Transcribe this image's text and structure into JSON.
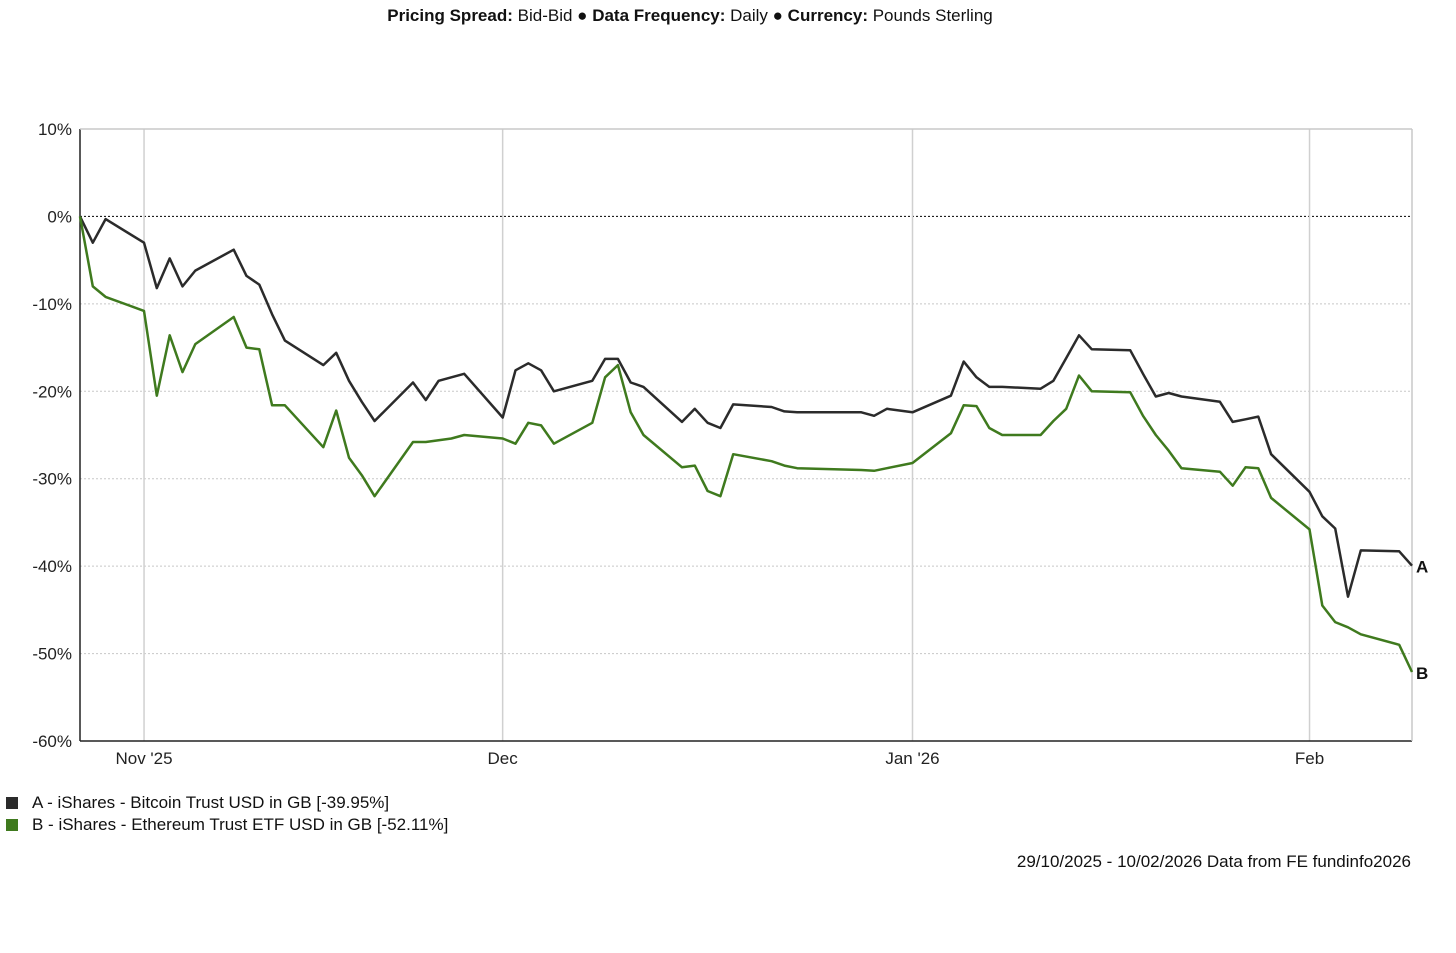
{
  "header": {
    "pricing_spread_label": "Pricing Spread:",
    "pricing_spread_value": "Bid-Bid",
    "separator": "●",
    "data_frequency_label": "Data Frequency:",
    "data_frequency_value": "Daily",
    "currency_label": "Currency:",
    "currency_value": "Pounds Sterling"
  },
  "legend": {
    "items": [
      {
        "label": "A - iShares - Bitcoin Trust USD in GB [-39.95%]",
        "color": "#2b2b2b"
      },
      {
        "label": "B - iShares - Ethereum Trust ETF USD in GB [-52.11%]",
        "color": "#3f7a1e"
      }
    ]
  },
  "footer": {
    "text": "29/10/2025 - 10/02/2026 Data from FE fundinfo2026"
  },
  "chart_data": {
    "type": "line",
    "x_range": [
      "2025-10-29",
      "2026-02-10"
    ],
    "ylim": [
      -60,
      10
    ],
    "yticks": [
      10,
      0,
      -10,
      -20,
      -30,
      -40,
      -50,
      -60
    ],
    "ytick_labels": [
      "10%",
      "0%",
      "-10%",
      "-20%",
      "-30%",
      "-40%",
      "-50%",
      "-60%"
    ],
    "xticks": [
      {
        "date": "2025-11-03",
        "label": "Nov '25"
      },
      {
        "date": "2025-12-01",
        "label": "Dec"
      },
      {
        "date": "2026-01-02",
        "label": "Jan '26"
      },
      {
        "date": "2026-02-02",
        "label": "Feb"
      }
    ],
    "grid": true,
    "zero_line": true,
    "series": [
      {
        "name": "A - iShares - Bitcoin Trust USD in GB [-39.95%]",
        "end_label": "A",
        "color": "#2b2b2b",
        "points": [
          [
            "2025-10-29",
            0.0
          ],
          [
            "2025-10-30",
            -3.0
          ],
          [
            "2025-10-31",
            -0.3
          ],
          [
            "2025-11-03",
            -3.0
          ],
          [
            "2025-11-04",
            -8.2
          ],
          [
            "2025-11-05",
            -4.8
          ],
          [
            "2025-11-06",
            -8.0
          ],
          [
            "2025-11-07",
            -6.2
          ],
          [
            "2025-11-10",
            -3.8
          ],
          [
            "2025-11-11",
            -6.8
          ],
          [
            "2025-11-12",
            -7.8
          ],
          [
            "2025-11-13",
            -11.2
          ],
          [
            "2025-11-14",
            -14.2
          ],
          [
            "2025-11-17",
            -17.0
          ],
          [
            "2025-11-18",
            -15.6
          ],
          [
            "2025-11-19",
            -18.8
          ],
          [
            "2025-11-20",
            -21.2
          ],
          [
            "2025-11-21",
            -23.4
          ],
          [
            "2025-11-24",
            -19.0
          ],
          [
            "2025-11-25",
            -21.0
          ],
          [
            "2025-11-26",
            -18.8
          ],
          [
            "2025-11-27",
            -18.4
          ],
          [
            "2025-11-28",
            -18.0
          ],
          [
            "2025-12-01",
            -23.0
          ],
          [
            "2025-12-02",
            -17.6
          ],
          [
            "2025-12-03",
            -16.8
          ],
          [
            "2025-12-04",
            -17.6
          ],
          [
            "2025-12-05",
            -20.0
          ],
          [
            "2025-12-08",
            -18.8
          ],
          [
            "2025-12-09",
            -16.3
          ],
          [
            "2025-12-10",
            -16.3
          ],
          [
            "2025-12-11",
            -19.0
          ],
          [
            "2025-12-12",
            -19.5
          ],
          [
            "2025-12-15",
            -23.5
          ],
          [
            "2025-12-16",
            -22.0
          ],
          [
            "2025-12-17",
            -23.6
          ],
          [
            "2025-12-18",
            -24.2
          ],
          [
            "2025-12-19",
            -21.5
          ],
          [
            "2025-12-22",
            -21.8
          ],
          [
            "2025-12-23",
            -22.3
          ],
          [
            "2025-12-24",
            -22.4
          ],
          [
            "2025-12-29",
            -22.4
          ],
          [
            "2025-12-30",
            -22.8
          ],
          [
            "2025-12-31",
            -22.0
          ],
          [
            "2026-01-02",
            -22.4
          ],
          [
            "2026-01-05",
            -20.5
          ],
          [
            "2026-01-06",
            -16.6
          ],
          [
            "2026-01-07",
            -18.4
          ],
          [
            "2026-01-08",
            -19.5
          ],
          [
            "2026-01-09",
            -19.5
          ],
          [
            "2026-01-12",
            -19.7
          ],
          [
            "2026-01-13",
            -18.8
          ],
          [
            "2026-01-14",
            -16.2
          ],
          [
            "2026-01-15",
            -13.6
          ],
          [
            "2026-01-16",
            -15.2
          ],
          [
            "2026-01-19",
            -15.3
          ],
          [
            "2026-01-20",
            -18.0
          ],
          [
            "2026-01-21",
            -20.6
          ],
          [
            "2026-01-22",
            -20.2
          ],
          [
            "2026-01-23",
            -20.6
          ],
          [
            "2026-01-26",
            -21.2
          ],
          [
            "2026-01-27",
            -23.5
          ],
          [
            "2026-01-28",
            -23.2
          ],
          [
            "2026-01-29",
            -22.9
          ],
          [
            "2026-01-30",
            -27.2
          ],
          [
            "2026-02-02",
            -31.5
          ],
          [
            "2026-02-03",
            -34.3
          ],
          [
            "2026-02-04",
            -35.7
          ],
          [
            "2026-02-05",
            -43.5
          ],
          [
            "2026-02-06",
            -38.2
          ],
          [
            "2026-02-09",
            -38.3
          ],
          [
            "2026-02-10",
            -39.95
          ]
        ]
      },
      {
        "name": "B - iShares - Ethereum Trust ETF USD in GB [-52.11%]",
        "end_label": "B",
        "color": "#3f7a1e",
        "points": [
          [
            "2025-10-29",
            0.0
          ],
          [
            "2025-10-30",
            -8.0
          ],
          [
            "2025-10-31",
            -9.2
          ],
          [
            "2025-11-03",
            -10.8
          ],
          [
            "2025-11-04",
            -20.5
          ],
          [
            "2025-11-05",
            -13.6
          ],
          [
            "2025-11-06",
            -17.8
          ],
          [
            "2025-11-07",
            -14.6
          ],
          [
            "2025-11-10",
            -11.5
          ],
          [
            "2025-11-11",
            -15.0
          ],
          [
            "2025-11-12",
            -15.2
          ],
          [
            "2025-11-13",
            -21.6
          ],
          [
            "2025-11-14",
            -21.6
          ],
          [
            "2025-11-17",
            -26.4
          ],
          [
            "2025-11-18",
            -22.2
          ],
          [
            "2025-11-19",
            -27.6
          ],
          [
            "2025-11-20",
            -29.6
          ],
          [
            "2025-11-21",
            -32.0
          ],
          [
            "2025-11-24",
            -25.8
          ],
          [
            "2025-11-25",
            -25.8
          ],
          [
            "2025-11-26",
            -25.6
          ],
          [
            "2025-11-27",
            -25.4
          ],
          [
            "2025-11-28",
            -25.0
          ],
          [
            "2025-12-01",
            -25.4
          ],
          [
            "2025-12-02",
            -26.0
          ],
          [
            "2025-12-03",
            -23.6
          ],
          [
            "2025-12-04",
            -23.9
          ],
          [
            "2025-12-05",
            -26.0
          ],
          [
            "2025-12-08",
            -23.6
          ],
          [
            "2025-12-09",
            -18.4
          ],
          [
            "2025-12-10",
            -17.0
          ],
          [
            "2025-12-11",
            -22.4
          ],
          [
            "2025-12-12",
            -25.0
          ],
          [
            "2025-12-15",
            -28.7
          ],
          [
            "2025-12-16",
            -28.5
          ],
          [
            "2025-12-17",
            -31.4
          ],
          [
            "2025-12-18",
            -32.0
          ],
          [
            "2025-12-19",
            -27.2
          ],
          [
            "2025-12-22",
            -28.0
          ],
          [
            "2025-12-23",
            -28.5
          ],
          [
            "2025-12-24",
            -28.8
          ],
          [
            "2025-12-29",
            -29.0
          ],
          [
            "2025-12-30",
            -29.1
          ],
          [
            "2025-12-31",
            -28.8
          ],
          [
            "2026-01-02",
            -28.2
          ],
          [
            "2026-01-05",
            -24.8
          ],
          [
            "2026-01-06",
            -21.6
          ],
          [
            "2026-01-07",
            -21.7
          ],
          [
            "2026-01-08",
            -24.2
          ],
          [
            "2026-01-09",
            -25.0
          ],
          [
            "2026-01-12",
            -25.0
          ],
          [
            "2026-01-13",
            -23.4
          ],
          [
            "2026-01-14",
            -22.0
          ],
          [
            "2026-01-15",
            -18.2
          ],
          [
            "2026-01-16",
            -20.0
          ],
          [
            "2026-01-19",
            -20.1
          ],
          [
            "2026-01-20",
            -22.8
          ],
          [
            "2026-01-21",
            -25.0
          ],
          [
            "2026-01-22",
            -26.8
          ],
          [
            "2026-01-23",
            -28.8
          ],
          [
            "2026-01-26",
            -29.2
          ],
          [
            "2026-01-27",
            -30.8
          ],
          [
            "2026-01-28",
            -28.7
          ],
          [
            "2026-01-29",
            -28.8
          ],
          [
            "2026-01-30",
            -32.2
          ],
          [
            "2026-02-02",
            -35.8
          ],
          [
            "2026-02-03",
            -44.5
          ],
          [
            "2026-02-04",
            -46.4
          ],
          [
            "2026-02-05",
            -47.0
          ],
          [
            "2026-02-06",
            -47.8
          ],
          [
            "2026-02-09",
            -49.0
          ],
          [
            "2026-02-10",
            -52.11
          ]
        ]
      }
    ]
  }
}
